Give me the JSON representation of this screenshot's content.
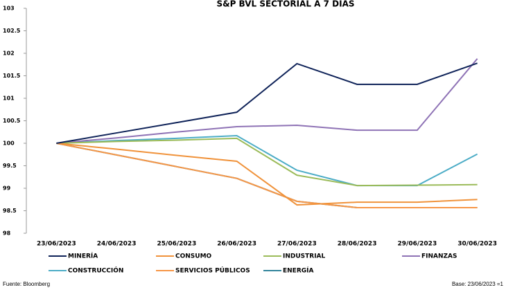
{
  "chart_data": {
    "type": "line",
    "title": "S&P BVL SECTORIAL A 7 DÍAS",
    "categories": [
      "23/06/2023",
      "24/06/2023",
      "25/06/2023",
      "26/06/2023",
      "27/06/2023",
      "28/06/2023",
      "29/06/2023",
      "30/06/2023"
    ],
    "series": [
      {
        "name": "MINERÍA",
        "color": "#0e2258",
        "values": [
          100,
          100.23,
          100.46,
          100.69,
          101.77,
          101.31,
          101.31,
          101.78
        ]
      },
      {
        "name": "CONSUMO",
        "color": "#f0923a",
        "values": [
          100,
          99.87,
          99.73,
          99.6,
          98.63,
          98.69,
          98.69,
          98.75
        ]
      },
      {
        "name": "INDUSTRIAL",
        "color": "#9bbb59",
        "values": [
          100,
          100.04,
          100.07,
          100.11,
          99.29,
          99.06,
          99.07,
          99.08
        ]
      },
      {
        "name": "FINANZAS",
        "color": "#8e72b5",
        "values": [
          100,
          100.12,
          100.25,
          100.37,
          100.4,
          100.29,
          100.29,
          101.88
        ]
      },
      {
        "name": "CONSTRUCCIÓN",
        "color": "#4bacc6",
        "values": [
          100,
          100.06,
          100.11,
          100.17,
          99.4,
          99.06,
          99.06,
          99.76
        ]
      },
      {
        "name": "SERVICIOS PÚBLICOS",
        "color": "#f79646",
        "values": [
          100,
          99.74,
          99.48,
          99.22,
          98.71,
          98.57,
          98.57,
          98.57
        ]
      },
      {
        "name": "ENERGÍA",
        "color": "#31849b",
        "values": [
          100,
          99.74,
          99.48,
          99.22,
          98.71,
          98.57,
          98.57,
          98.57
        ]
      }
    ],
    "ylim": [
      98,
      103
    ],
    "yticks": [
      98,
      98.5,
      99,
      99.5,
      100,
      100.5,
      101,
      101.5,
      102,
      102.5,
      103
    ],
    "grid": false,
    "source": "Fuente: Bloomberg",
    "base_note": "Base:   23/06/2023 =1"
  }
}
